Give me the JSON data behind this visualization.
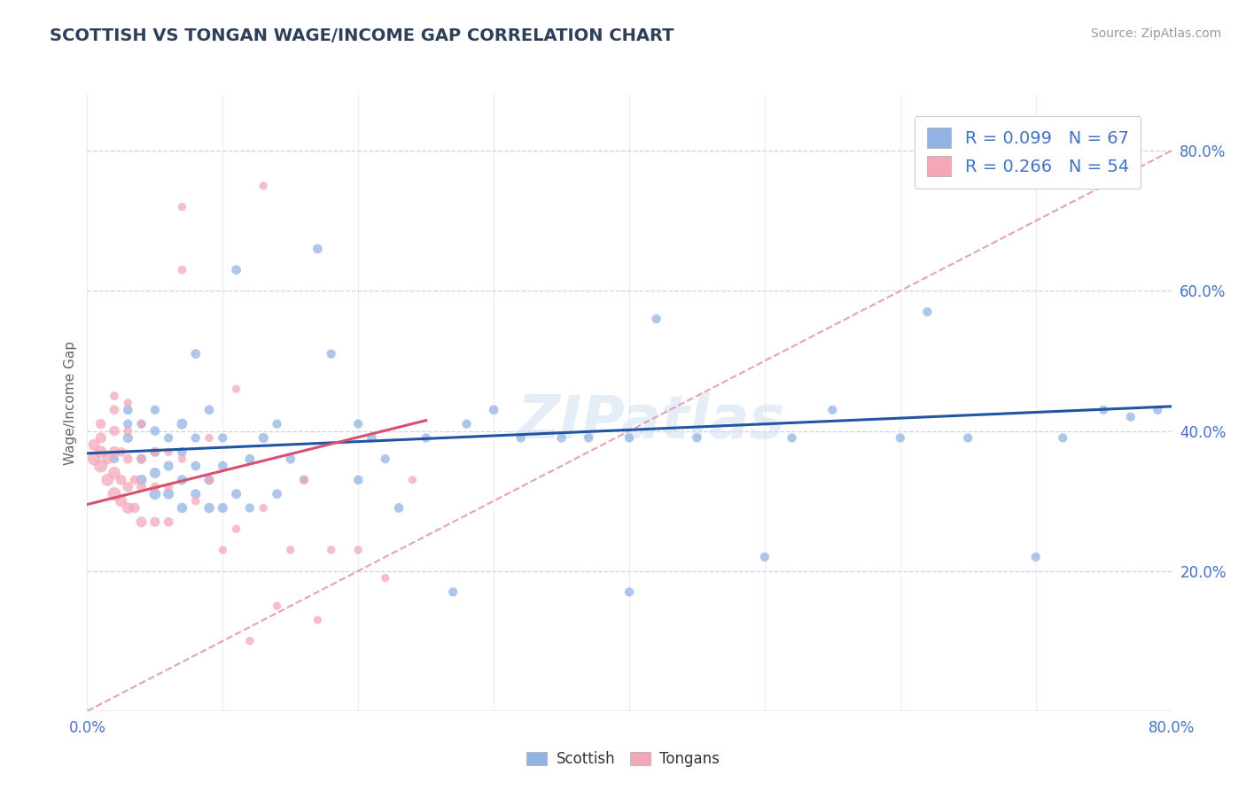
{
  "title": "SCOTTISH VS TONGAN WAGE/INCOME GAP CORRELATION CHART",
  "source_text": "Source: ZipAtlas.com",
  "ylabel": "Wage/Income Gap",
  "xlim": [
    0.0,
    0.8
  ],
  "ylim": [
    0.0,
    0.88
  ],
  "ytick_right_values": [
    0.2,
    0.4,
    0.6,
    0.8
  ],
  "ytick_right_labels": [
    "20.0%",
    "40.0%",
    "60.0%",
    "80.0%"
  ],
  "scottish_R": 0.099,
  "scottish_N": 67,
  "tongan_R": 0.266,
  "tongan_N": 54,
  "scottish_color": "#92b4e3",
  "tongan_color": "#f4a7b9",
  "scottish_line_color": "#2155a3",
  "tongan_line_color": "#d94f6e",
  "ref_line_color": "#e09aaa",
  "background_color": "#ffffff",
  "grid_color": "#c8d4e8",
  "title_color": "#2e4057",
  "axis_label_color": "#4472c4",
  "scottish_x": [
    0.02,
    0.03,
    0.03,
    0.03,
    0.04,
    0.04,
    0.04,
    0.05,
    0.05,
    0.05,
    0.05,
    0.05,
    0.06,
    0.06,
    0.06,
    0.07,
    0.07,
    0.07,
    0.07,
    0.08,
    0.08,
    0.08,
    0.08,
    0.09,
    0.09,
    0.09,
    0.1,
    0.1,
    0.1,
    0.11,
    0.11,
    0.12,
    0.12,
    0.13,
    0.14,
    0.14,
    0.15,
    0.16,
    0.17,
    0.18,
    0.2,
    0.2,
    0.21,
    0.22,
    0.23,
    0.25,
    0.27,
    0.28,
    0.3,
    0.32,
    0.35,
    0.37,
    0.4,
    0.4,
    0.42,
    0.45,
    0.5,
    0.52,
    0.55,
    0.6,
    0.62,
    0.65,
    0.7,
    0.72,
    0.75,
    0.77,
    0.79
  ],
  "scottish_y": [
    0.36,
    0.39,
    0.41,
    0.43,
    0.33,
    0.36,
    0.41,
    0.31,
    0.34,
    0.37,
    0.4,
    0.43,
    0.31,
    0.35,
    0.39,
    0.29,
    0.33,
    0.37,
    0.41,
    0.31,
    0.35,
    0.39,
    0.51,
    0.29,
    0.33,
    0.43,
    0.29,
    0.35,
    0.39,
    0.31,
    0.63,
    0.29,
    0.36,
    0.39,
    0.31,
    0.41,
    0.36,
    0.33,
    0.66,
    0.51,
    0.33,
    0.41,
    0.39,
    0.36,
    0.29,
    0.39,
    0.17,
    0.41,
    0.43,
    0.39,
    0.39,
    0.39,
    0.17,
    0.39,
    0.56,
    0.39,
    0.22,
    0.39,
    0.43,
    0.39,
    0.57,
    0.39,
    0.22,
    0.39,
    0.43,
    0.42,
    0.43
  ],
  "scottish_sizes": [
    55,
    65,
    55,
    60,
    75,
    65,
    55,
    85,
    75,
    65,
    60,
    55,
    75,
    65,
    55,
    70,
    65,
    60,
    75,
    65,
    60,
    55,
    60,
    70,
    65,
    60,
    65,
    60,
    55,
    65,
    60,
    55,
    60,
    65,
    60,
    55,
    60,
    55,
    60,
    55,
    60,
    55,
    60,
    55,
    60,
    55,
    55,
    55,
    60,
    55,
    55,
    55,
    55,
    55,
    55,
    55,
    55,
    55,
    55,
    55,
    55,
    55,
    55,
    55,
    55,
    55,
    55
  ],
  "tongan_x": [
    0.005,
    0.005,
    0.01,
    0.01,
    0.01,
    0.01,
    0.015,
    0.015,
    0.02,
    0.02,
    0.02,
    0.02,
    0.02,
    0.02,
    0.025,
    0.025,
    0.025,
    0.03,
    0.03,
    0.03,
    0.03,
    0.03,
    0.035,
    0.035,
    0.04,
    0.04,
    0.04,
    0.04,
    0.05,
    0.05,
    0.05,
    0.06,
    0.06,
    0.06,
    0.07,
    0.07,
    0.08,
    0.09,
    0.1,
    0.11,
    0.12,
    0.13,
    0.14,
    0.15,
    0.16,
    0.17,
    0.18,
    0.2,
    0.22,
    0.24,
    0.07,
    0.09,
    0.11,
    0.13
  ],
  "tongan_y": [
    0.36,
    0.38,
    0.35,
    0.37,
    0.39,
    0.41,
    0.33,
    0.36,
    0.31,
    0.34,
    0.37,
    0.4,
    0.43,
    0.45,
    0.3,
    0.33,
    0.37,
    0.29,
    0.32,
    0.36,
    0.4,
    0.44,
    0.29,
    0.33,
    0.27,
    0.32,
    0.36,
    0.41,
    0.27,
    0.32,
    0.37,
    0.27,
    0.32,
    0.37,
    0.63,
    0.36,
    0.3,
    0.33,
    0.23,
    0.26,
    0.1,
    0.29,
    0.15,
    0.23,
    0.33,
    0.13,
    0.23,
    0.23,
    0.19,
    0.33,
    0.72,
    0.39,
    0.46,
    0.75
  ],
  "tongan_sizes": [
    110,
    90,
    120,
    100,
    80,
    65,
    100,
    80,
    120,
    100,
    85,
    70,
    60,
    50,
    90,
    75,
    60,
    85,
    70,
    60,
    50,
    45,
    70,
    60,
    75,
    65,
    55,
    45,
    65,
    55,
    45,
    60,
    50,
    45,
    50,
    45,
    50,
    45,
    45,
    45,
    45,
    45,
    45,
    45,
    45,
    45,
    45,
    45,
    45,
    45,
    45,
    45,
    45,
    45
  ],
  "scottish_trend_x": [
    0.0,
    0.8
  ],
  "scottish_trend_y": [
    0.368,
    0.435
  ],
  "tongan_trend_x": [
    0.0,
    0.25
  ],
  "tongan_trend_y": [
    0.295,
    0.415
  ]
}
